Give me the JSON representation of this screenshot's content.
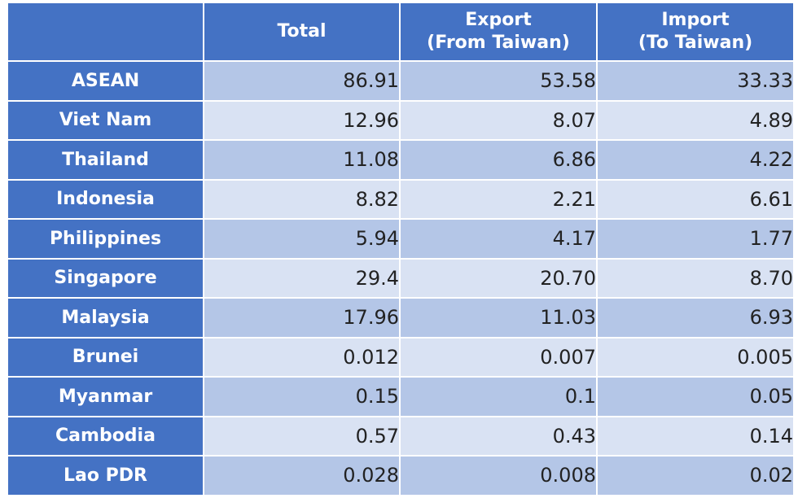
{
  "chart_data": {
    "type": "table",
    "columns": [
      {
        "label": "",
        "lines": []
      },
      {
        "label": "Total",
        "lines": [
          "Total"
        ]
      },
      {
        "label": "Export (From Taiwan)",
        "lines": [
          "Export",
          "(From Taiwan)"
        ]
      },
      {
        "label": "Import (To Taiwan)",
        "lines": [
          "Import",
          "(To Taiwan)"
        ]
      }
    ],
    "rows": [
      {
        "label": "ASEAN",
        "values": [
          "86.91",
          "53.58",
          "33.33"
        ]
      },
      {
        "label": "Viet Nam",
        "values": [
          "12.96",
          "8.07",
          "4.89"
        ]
      },
      {
        "label": "Thailand",
        "values": [
          "11.08",
          "6.86",
          "4.22"
        ]
      },
      {
        "label": "Indonesia",
        "values": [
          "8.82",
          "2.21",
          "6.61"
        ]
      },
      {
        "label": "Philippines",
        "values": [
          "5.94",
          "4.17",
          "1.77"
        ]
      },
      {
        "label": "Singapore",
        "values": [
          "29.4",
          "20.70",
          "8.70"
        ]
      },
      {
        "label": "Malaysia",
        "values": [
          "17.96",
          "11.03",
          "6.93"
        ]
      },
      {
        "label": "Brunei",
        "values": [
          "0.012",
          "0.007",
          "0.005"
        ]
      },
      {
        "label": "Myanmar",
        "values": [
          "0.15",
          "0.1",
          "0.05"
        ]
      },
      {
        "label": "Cambodia",
        "values": [
          "0.57",
          "0.43",
          "0.14"
        ]
      },
      {
        "label": "Lao PDR",
        "values": [
          "0.028",
          "0.008",
          "0.02"
        ]
      }
    ]
  },
  "colors": {
    "header_bg": "#4472c4",
    "header_text": "#ffffff",
    "row_band_dark": "#b4c6e7",
    "row_band_light": "#d9e2f3",
    "cell_text": "#222222"
  }
}
